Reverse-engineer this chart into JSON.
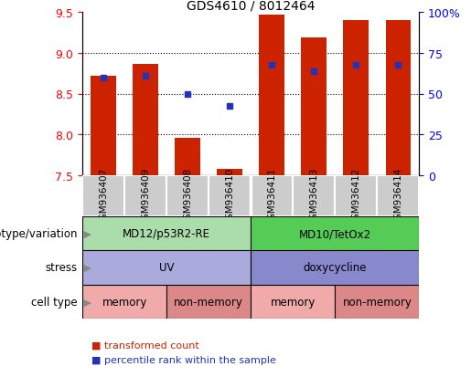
{
  "title": "GDS4610 / 8012464",
  "samples": [
    "GSM936407",
    "GSM936409",
    "GSM936408",
    "GSM936410",
    "GSM936411",
    "GSM936413",
    "GSM936412",
    "GSM936414"
  ],
  "bar_bottoms": [
    7.5,
    7.5,
    7.5,
    7.5,
    7.5,
    7.5,
    7.5,
    7.5
  ],
  "bar_tops": [
    8.72,
    8.87,
    7.96,
    7.57,
    9.47,
    9.19,
    9.41,
    9.41
  ],
  "blue_sq_y": [
    8.7,
    8.72,
    8.49,
    8.35,
    8.85,
    8.77,
    8.85,
    8.85
  ],
  "ylim": [
    7.5,
    9.5
  ],
  "yticks_left": [
    7.5,
    8.0,
    8.5,
    9.0,
    9.5
  ],
  "yticks_right_labels": [
    "0",
    "25",
    "50",
    "75",
    "100%"
  ],
  "yticks_right_vals": [
    0,
    25,
    50,
    75,
    100
  ],
  "bar_color": "#cc2200",
  "blue_color": "#2233bb",
  "annotation_rows": [
    {
      "label": "genotype/variation",
      "groups": [
        {
          "text": "MD12/p53R2-RE",
          "cols": [
            0,
            1,
            2,
            3
          ],
          "color": "#aaddaa"
        },
        {
          "text": "MD10/TetOx2",
          "cols": [
            4,
            5,
            6,
            7
          ],
          "color": "#55cc55"
        }
      ]
    },
    {
      "label": "stress",
      "groups": [
        {
          "text": "UV",
          "cols": [
            0,
            1,
            2,
            3
          ],
          "color": "#aaaadd"
        },
        {
          "text": "doxycycline",
          "cols": [
            4,
            5,
            6,
            7
          ],
          "color": "#8888cc"
        }
      ]
    },
    {
      "label": "cell type",
      "groups": [
        {
          "text": "memory",
          "cols": [
            0,
            1
          ],
          "color": "#f0aaaa"
        },
        {
          "text": "non-memory",
          "cols": [
            2,
            3
          ],
          "color": "#dd8888"
        },
        {
          "text": "memory",
          "cols": [
            4,
            5
          ],
          "color": "#f0aaaa"
        },
        {
          "text": "non-memory",
          "cols": [
            6,
            7
          ],
          "color": "#dd8888"
        }
      ]
    }
  ],
  "legend_items": [
    {
      "label": "transformed count",
      "color": "#cc2200"
    },
    {
      "label": "percentile rank within the sample",
      "color": "#2233bb"
    }
  ],
  "sample_bg": "#cccccc",
  "sample_divider_after": 3
}
